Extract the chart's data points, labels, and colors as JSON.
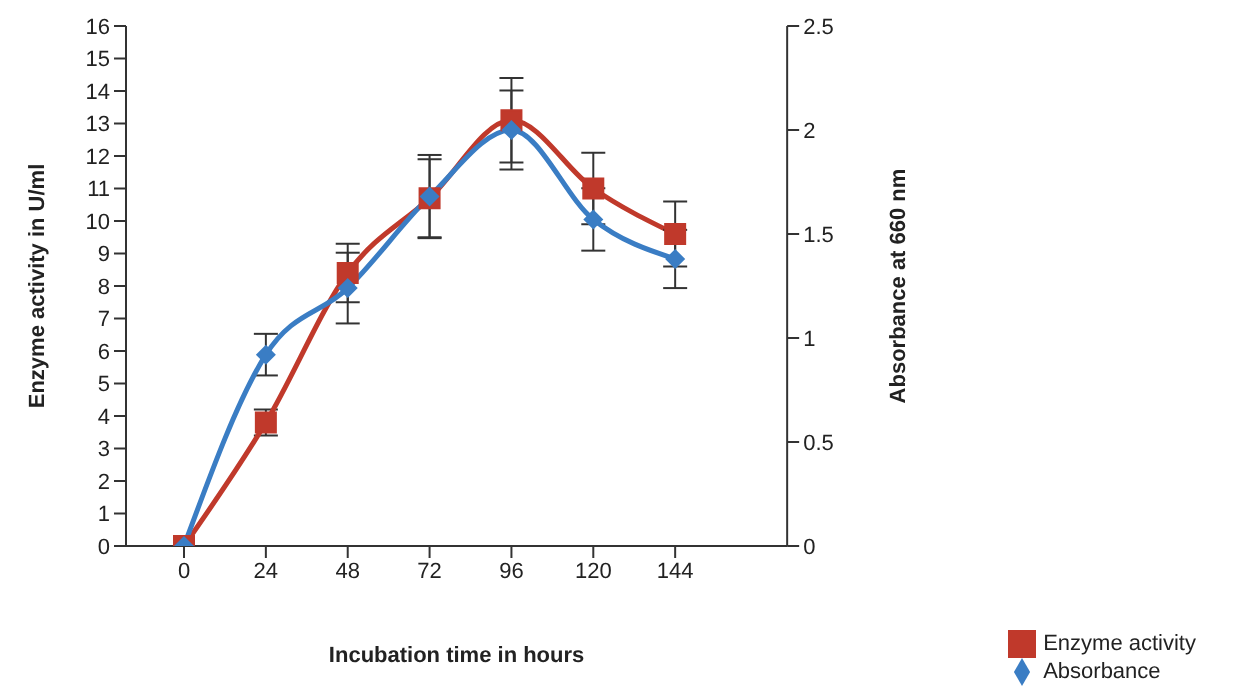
{
  "chart_data": {
    "type": "line",
    "xlabel": "Incubation time in hours",
    "ylabel": "Enzyme activity in U/ml",
    "y2label": "Absorbance at 660 nm",
    "categories": [
      "0",
      "24",
      "48",
      "72",
      "96",
      "120",
      "144"
    ],
    "series": [
      {
        "name": "Enzyme activity",
        "color": "#c0392b",
        "marker": "square",
        "values": [
          0,
          3.8,
          8.4,
          10.7,
          13.1,
          11.0,
          9.6
        ],
        "errors": [
          null,
          0.4,
          0.9,
          1.2,
          1.3,
          1.1,
          1.0
        ]
      },
      {
        "name": "Absorbance",
        "color": "#3a7dc4",
        "marker": "diamond",
        "axis": "y2",
        "values": [
          0,
          0.92,
          1.24,
          1.68,
          2.0,
          1.57,
          1.38
        ],
        "errors": [
          null,
          0.1,
          0.17,
          0.2,
          0.19,
          0.15,
          0.14
        ]
      }
    ],
    "ylim": [
      0,
      16
    ],
    "yticks": [
      0,
      1,
      2,
      3,
      4,
      5,
      6,
      7,
      8,
      9,
      10,
      11,
      12,
      13,
      14,
      15,
      16
    ],
    "y2lim": [
      0,
      2.5
    ],
    "y2ticks": [
      0,
      0.5,
      1,
      1.5,
      2,
      2.5
    ],
    "grid": false,
    "legend": "bottom right"
  }
}
